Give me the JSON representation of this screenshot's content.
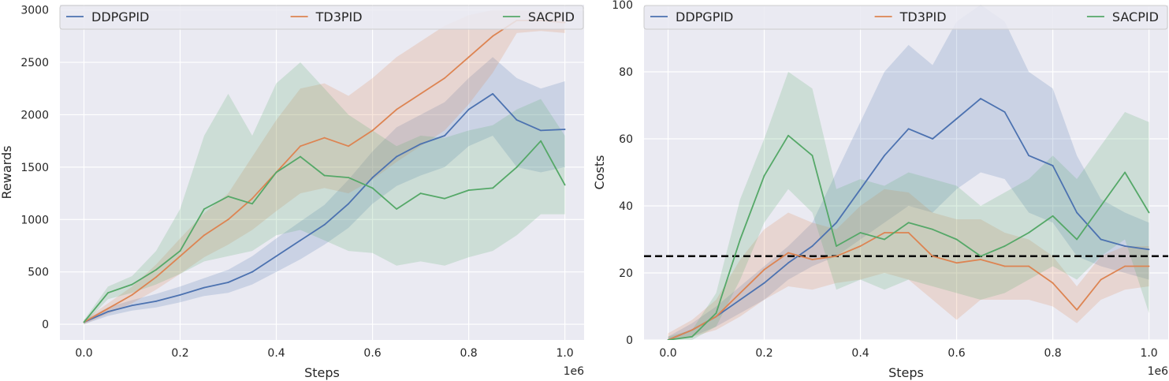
{
  "chart_data": [
    {
      "type": "line",
      "xlabel": "Steps",
      "ylabel": "Rewards",
      "x_offset_label": "1e6",
      "xlim": [
        -0.05,
        1.04
      ],
      "ylim": [
        -150,
        3050
      ],
      "xticks": [
        0.0,
        0.2,
        0.4,
        0.6,
        0.8,
        1.0
      ],
      "xtick_labels": [
        "0.0",
        "0.2",
        "0.4",
        "0.6",
        "0.8",
        "1.0"
      ],
      "yticks": [
        0,
        500,
        1000,
        1500,
        2000,
        2500,
        3000
      ],
      "ytick_labels": [
        "0",
        "500",
        "1000",
        "1500",
        "2000",
        "2500",
        "3000"
      ],
      "grid": true,
      "legend": "top, three columns",
      "series": [
        {
          "name": "DDPGPID",
          "color": "#4c72b0",
          "x": [
            0.0,
            0.05,
            0.1,
            0.15,
            0.2,
            0.25,
            0.3,
            0.35,
            0.4,
            0.45,
            0.5,
            0.55,
            0.6,
            0.65,
            0.7,
            0.75,
            0.8,
            0.85,
            0.9,
            0.95,
            1.0
          ],
          "y": [
            20,
            120,
            180,
            220,
            280,
            350,
            400,
            500,
            650,
            800,
            950,
            1150,
            1400,
            1600,
            1720,
            1800,
            2050,
            2200,
            1950,
            1850,
            1860
          ],
          "lower": [
            0,
            80,
            130,
            160,
            210,
            270,
            300,
            380,
            500,
            620,
            760,
            920,
            1150,
            1320,
            1420,
            1500,
            1700,
            1800,
            1500,
            1450,
            1500
          ],
          "upper": [
            40,
            160,
            230,
            290,
            360,
            440,
            520,
            650,
            820,
            980,
            1140,
            1380,
            1650,
            1880,
            2000,
            2120,
            2350,
            2550,
            2350,
            2250,
            2320
          ]
        },
        {
          "name": "TD3PID",
          "color": "#dd8452",
          "x": [
            0.0,
            0.05,
            0.1,
            0.15,
            0.2,
            0.25,
            0.3,
            0.35,
            0.4,
            0.45,
            0.5,
            0.55,
            0.6,
            0.65,
            0.7,
            0.75,
            0.8,
            0.85,
            0.9,
            0.95,
            1.0
          ],
          "y": [
            20,
            150,
            280,
            450,
            650,
            850,
            1000,
            1200,
            1450,
            1700,
            1780,
            1700,
            1850,
            2050,
            2200,
            2350,
            2550,
            2750,
            2900,
            2900,
            2880
          ],
          "lower": [
            0,
            100,
            200,
            330,
            480,
            640,
            760,
            900,
            1080,
            1250,
            1300,
            1250,
            1380,
            1550,
            1700,
            1850,
            2100,
            2400,
            2780,
            2800,
            2780
          ],
          "upper": [
            40,
            200,
            360,
            570,
            820,
            1060,
            1250,
            1600,
            1950,
            2250,
            2300,
            2180,
            2350,
            2550,
            2700,
            2850,
            2950,
            3000,
            3000,
            3000,
            2980
          ]
        },
        {
          "name": "SACPID",
          "color": "#55a868",
          "x": [
            0.0,
            0.05,
            0.1,
            0.15,
            0.2,
            0.25,
            0.3,
            0.35,
            0.4,
            0.45,
            0.5,
            0.55,
            0.6,
            0.65,
            0.7,
            0.75,
            0.8,
            0.85,
            0.9,
            0.95,
            1.0
          ],
          "y": [
            20,
            300,
            380,
            520,
            700,
            1100,
            1220,
            1150,
            1450,
            1600,
            1420,
            1400,
            1300,
            1100,
            1250,
            1200,
            1280,
            1300,
            1500,
            1750,
            1330
          ],
          "lower": [
            0,
            240,
            300,
            380,
            480,
            600,
            650,
            700,
            850,
            900,
            800,
            700,
            680,
            560,
            600,
            560,
            640,
            700,
            850,
            1050,
            1050
          ],
          "upper": [
            40,
            360,
            460,
            700,
            1100,
            1800,
            2200,
            1800,
            2300,
            2500,
            2250,
            2000,
            1850,
            1700,
            1800,
            1780,
            1850,
            1900,
            2050,
            2150,
            1800
          ]
        }
      ]
    },
    {
      "type": "line",
      "xlabel": "Steps",
      "ylabel": "Costs",
      "x_offset_label": "1e6",
      "xlim": [
        -0.05,
        1.04
      ],
      "ylim": [
        0,
        100
      ],
      "xticks": [
        0.0,
        0.2,
        0.4,
        0.6,
        0.8,
        1.0
      ],
      "xtick_labels": [
        "0.0",
        "0.2",
        "0.4",
        "0.6",
        "0.8",
        "1.0"
      ],
      "yticks": [
        0,
        20,
        40,
        60,
        80,
        100
      ],
      "ytick_labels": [
        "0",
        "20",
        "40",
        "60",
        "80",
        "100"
      ],
      "grid": true,
      "legend": "top, three columns",
      "threshold": {
        "y": 25,
        "style": "black dashed"
      },
      "series": [
        {
          "name": "DDPGPID",
          "color": "#4c72b0",
          "x": [
            0.0,
            0.05,
            0.1,
            0.15,
            0.2,
            0.25,
            0.3,
            0.35,
            0.4,
            0.45,
            0.5,
            0.55,
            0.6,
            0.65,
            0.7,
            0.75,
            0.8,
            0.85,
            0.9,
            0.95,
            1.0
          ],
          "y": [
            0,
            3,
            7,
            12,
            17,
            23,
            28,
            35,
            45,
            55,
            63,
            60,
            66,
            72,
            68,
            55,
            52,
            38,
            30,
            28,
            27
          ],
          "lower": [
            0,
            1,
            4,
            8,
            12,
            18,
            22,
            25,
            30,
            35,
            40,
            38,
            45,
            50,
            48,
            38,
            35,
            25,
            22,
            20,
            18
          ],
          "upper": [
            1,
            5,
            10,
            16,
            22,
            28,
            35,
            50,
            65,
            80,
            88,
            82,
            95,
            100,
            95,
            80,
            75,
            55,
            42,
            38,
            35
          ]
        },
        {
          "name": "TD3PID",
          "color": "#dd8452",
          "x": [
            0.0,
            0.05,
            0.1,
            0.15,
            0.2,
            0.25,
            0.3,
            0.35,
            0.4,
            0.45,
            0.5,
            0.55,
            0.6,
            0.65,
            0.7,
            0.75,
            0.8,
            0.85,
            0.9,
            0.95,
            1.0
          ],
          "y": [
            0,
            3,
            7,
            14,
            21,
            26,
            24,
            25,
            28,
            32,
            32,
            25,
            23,
            24,
            22,
            22,
            17,
            9,
            18,
            22,
            22
          ],
          "lower": [
            0,
            1,
            3,
            7,
            12,
            16,
            15,
            17,
            18,
            20,
            18,
            12,
            6,
            12,
            12,
            12,
            10,
            5,
            12,
            15,
            16
          ],
          "upper": [
            2,
            6,
            12,
            24,
            33,
            38,
            35,
            33,
            40,
            45,
            44,
            38,
            36,
            36,
            32,
            30,
            25,
            16,
            25,
            28,
            28
          ]
        },
        {
          "name": "SACPID",
          "color": "#55a868",
          "x": [
            0.0,
            0.05,
            0.1,
            0.15,
            0.2,
            0.25,
            0.3,
            0.35,
            0.4,
            0.45,
            0.5,
            0.55,
            0.6,
            0.65,
            0.7,
            0.75,
            0.8,
            0.85,
            0.9,
            0.95,
            1.0
          ],
          "y": [
            0,
            1,
            8,
            30,
            49,
            61,
            55,
            28,
            32,
            30,
            35,
            33,
            30,
            25,
            28,
            32,
            37,
            30,
            40,
            50,
            38
          ],
          "lower": [
            0,
            0,
            4,
            18,
            35,
            45,
            38,
            15,
            18,
            15,
            18,
            16,
            14,
            12,
            14,
            18,
            22,
            18,
            25,
            30,
            8
          ],
          "upper": [
            1,
            3,
            14,
            42,
            60,
            80,
            75,
            45,
            48,
            46,
            50,
            48,
            46,
            40,
            44,
            48,
            55,
            48,
            58,
            68,
            65
          ]
        }
      ]
    }
  ]
}
